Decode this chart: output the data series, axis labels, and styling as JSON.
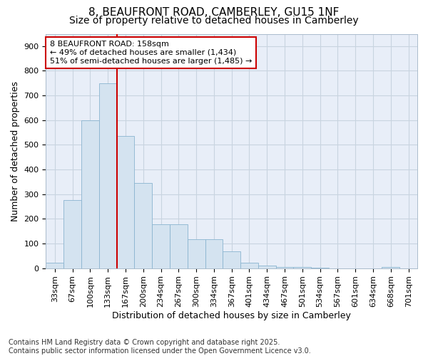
{
  "title": "8, BEAUFRONT ROAD, CAMBERLEY, GU15 1NF",
  "subtitle": "Size of property relative to detached houses in Camberley",
  "xlabel": "Distribution of detached houses by size in Camberley",
  "ylabel": "Number of detached properties",
  "categories": [
    "33sqm",
    "67sqm",
    "100sqm",
    "133sqm",
    "167sqm",
    "200sqm",
    "234sqm",
    "267sqm",
    "300sqm",
    "334sqm",
    "367sqm",
    "401sqm",
    "434sqm",
    "467sqm",
    "501sqm",
    "534sqm",
    "567sqm",
    "601sqm",
    "634sqm",
    "668sqm",
    "701sqm"
  ],
  "values": [
    22,
    275,
    600,
    750,
    535,
    345,
    178,
    178,
    118,
    118,
    68,
    22,
    10,
    5,
    5,
    2,
    0,
    0,
    0,
    5,
    0
  ],
  "bar_color": "#d4e3f0",
  "bar_edge_color": "#8ab4d0",
  "vline_x_index": 3,
  "vline_color": "#cc0000",
  "annotation_text": "8 BEAUFRONT ROAD: 158sqm\n← 49% of detached houses are smaller (1,434)\n51% of semi-detached houses are larger (1,485) →",
  "annotation_box_color": "#ffffff",
  "annotation_box_edge": "#cc0000",
  "ylim": [
    0,
    950
  ],
  "yticks": [
    0,
    100,
    200,
    300,
    400,
    500,
    600,
    700,
    800,
    900
  ],
  "footnote": "Contains HM Land Registry data © Crown copyright and database right 2025.\nContains public sector information licensed under the Open Government Licence v3.0.",
  "bg_color": "#ffffff",
  "plot_bg_color": "#e8eef8",
  "grid_color": "#c8d4e0",
  "title_fontsize": 11,
  "subtitle_fontsize": 10,
  "xlabel_fontsize": 9,
  "ylabel_fontsize": 9,
  "tick_fontsize": 8,
  "footnote_fontsize": 7,
  "annotation_fontsize": 8
}
